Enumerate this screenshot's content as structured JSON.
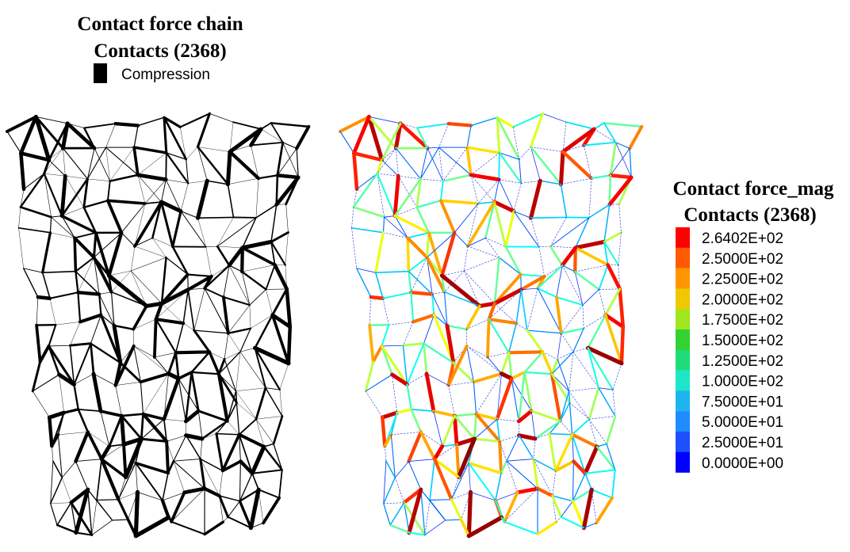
{
  "left_panel": {
    "title": "Contact force chain",
    "subtitle": "Contacts (2368)",
    "legend": {
      "label": "Compression",
      "color": "#000000"
    }
  },
  "right_panel": {
    "colorbar": {
      "title": "Contact force_mag",
      "subtitle": "Contacts (2368)",
      "entries": [
        {
          "label": "2.6402E+02",
          "color": "#ff0000"
        },
        {
          "label": "2.5000E+02",
          "color": "#ff5a00"
        },
        {
          "label": "2.2500E+02",
          "color": "#ff9600"
        },
        {
          "label": "2.0000E+02",
          "color": "#f0c800"
        },
        {
          "label": "1.7500E+02",
          "color": "#a0e61e"
        },
        {
          "label": "1.5000E+02",
          "color": "#32d232"
        },
        {
          "label": "1.2500E+02",
          "color": "#1edc78"
        },
        {
          "label": "1.0000E+02",
          "color": "#1ee6c8"
        },
        {
          "label": "7.5000E+01",
          "color": "#1eb4f0"
        },
        {
          "label": "5.0000E+01",
          "color": "#1e8cff"
        },
        {
          "label": "2.5000E+01",
          "color": "#1e50ff"
        },
        {
          "label": "0.0000E+00",
          "color": "#0000ff"
        }
      ]
    }
  }
}
